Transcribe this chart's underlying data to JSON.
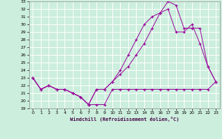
{
  "xlabel": "Windchill (Refroidissement éolien,°C)",
  "bg_color": "#cceedd",
  "line_color": "#990099",
  "grid_color": "#ffffff",
  "xlim": [
    -0.5,
    23.5
  ],
  "ylim": [
    19,
    33
  ],
  "yticks": [
    19,
    20,
    21,
    22,
    23,
    24,
    25,
    26,
    27,
    28,
    29,
    30,
    31,
    32,
    33
  ],
  "xticks": [
    0,
    1,
    2,
    3,
    4,
    5,
    6,
    7,
    8,
    9,
    10,
    11,
    12,
    13,
    14,
    15,
    16,
    17,
    18,
    19,
    20,
    21,
    22,
    23
  ],
  "series1_x": [
    0,
    1,
    2,
    3,
    4,
    5,
    6,
    7,
    8,
    9,
    10,
    11,
    12,
    13,
    14,
    15,
    16,
    17,
    18,
    19,
    20,
    21,
    22,
    23
  ],
  "series1_y": [
    23.0,
    21.5,
    22.0,
    21.5,
    21.5,
    21.0,
    20.5,
    19.5,
    19.5,
    19.5,
    21.5,
    21.5,
    21.5,
    21.5,
    21.5,
    21.5,
    21.5,
    21.5,
    21.5,
    21.5,
    21.5,
    21.5,
    21.5,
    22.5
  ],
  "series2_x": [
    0,
    1,
    2,
    3,
    4,
    5,
    6,
    7,
    8,
    9,
    10,
    11,
    12,
    13,
    14,
    15,
    16,
    17,
    18,
    19,
    20,
    21,
    22,
    23
  ],
  "series2_y": [
    23.0,
    21.5,
    22.0,
    21.5,
    21.5,
    21.0,
    20.5,
    19.5,
    21.5,
    21.5,
    22.5,
    24.0,
    26.0,
    28.0,
    30.0,
    31.0,
    31.5,
    33.0,
    32.5,
    29.5,
    29.5,
    29.5,
    24.5,
    22.5
  ],
  "series3_x": [
    0,
    1,
    2,
    3,
    4,
    5,
    6,
    7,
    8,
    9,
    10,
    11,
    12,
    13,
    14,
    15,
    16,
    17,
    18,
    19,
    20,
    21,
    22,
    23
  ],
  "series3_y": [
    23.0,
    21.5,
    22.0,
    21.5,
    21.5,
    21.0,
    20.5,
    19.5,
    21.5,
    21.5,
    22.5,
    23.5,
    24.5,
    26.0,
    27.5,
    29.5,
    31.5,
    32.0,
    29.0,
    29.0,
    30.0,
    27.5,
    24.5,
    22.5
  ]
}
